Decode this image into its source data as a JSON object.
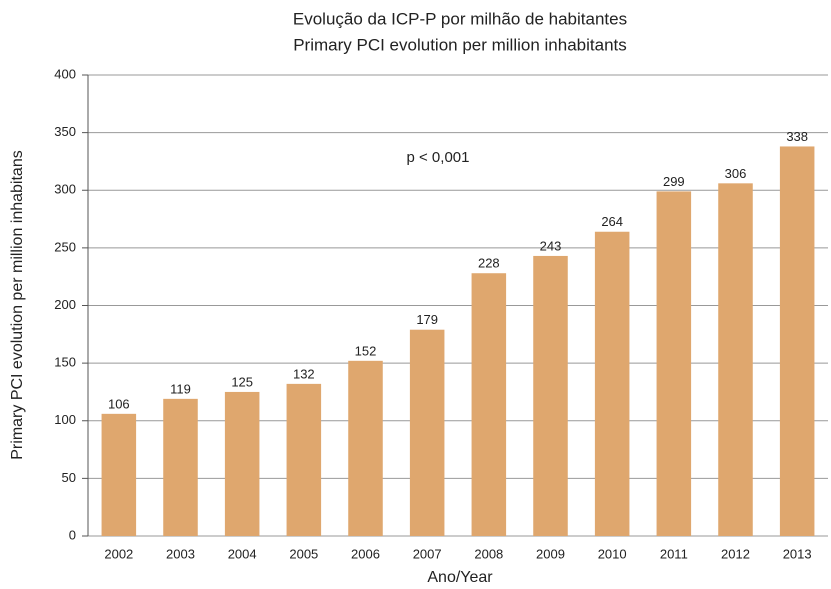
{
  "chart_data": {
    "type": "bar",
    "title": "Evolução da ICP-P por milhão de habitantes",
    "subtitle": "Primary PCI evolution per million inhabitants",
    "annotation": "p < 0,001",
    "x_label": "Ano/Year",
    "y_label": "Primary PCI evolution per million inhabitans",
    "categories": [
      "2002",
      "2003",
      "2004",
      "2005",
      "2006",
      "2007",
      "2008",
      "2009",
      "2010",
      "2011",
      "2012",
      "2013"
    ],
    "values": [
      106,
      119,
      125,
      132,
      152,
      179,
      228,
      243,
      264,
      299,
      306,
      338
    ],
    "color": "#dfa76e",
    "ylim": [
      0,
      400
    ],
    "yticks": [
      0,
      50,
      100,
      150,
      200,
      250,
      300,
      350,
      400
    ],
    "grid": true
  }
}
